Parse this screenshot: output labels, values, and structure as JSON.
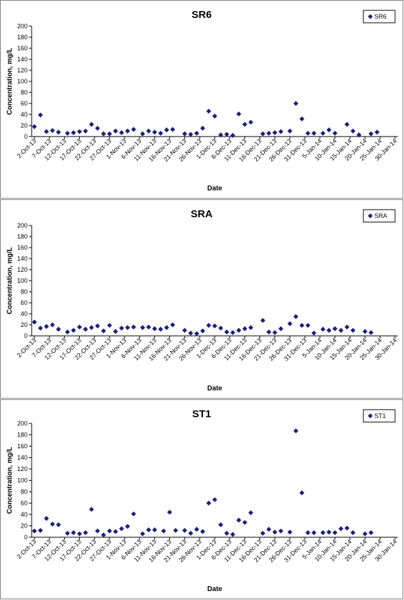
{
  "chart_data": [
    {
      "type": "scatter",
      "title": "SR6",
      "xlabel": "Date",
      "ylabel": "Concentration, mg/L",
      "ylim": [
        0,
        200
      ],
      "yticks": [
        "0",
        "20",
        "40",
        "60",
        "80",
        "100",
        "120",
        "140",
        "160",
        "180",
        "200"
      ],
      "xticks": [
        "2-Oct-13",
        "7-Oct-13",
        "12-Oct-13",
        "17-Oct-13",
        "22-Oct-13",
        "27-Oct-13",
        "1-Nov-13",
        "6-Nov-13",
        "11-Nov-13",
        "16-Nov-13",
        "21-Nov-13",
        "26-Nov-13",
        "1-Dec-13",
        "6-Dec-13",
        "11-Dec-13",
        "16-Dec-13",
        "21-Dec-13",
        "26-Dec-13",
        "31-Dec-13",
        "5-Jan-14",
        "10-Jan-14",
        "15-Jan-14",
        "20-Jan-14",
        "25-Jan-14",
        "30-Jan-14"
      ],
      "legend": {
        "label": "SR6",
        "position": "top-right"
      },
      "grid": false,
      "color": "#1F1F7A",
      "series": [
        {
          "name": "SR6",
          "values": [
            [
              "2-Oct-13",
              18
            ],
            [
              "4-Oct-13",
              39
            ],
            [
              "6-Oct-13",
              9
            ],
            [
              "8-Oct-13",
              11
            ],
            [
              "10-Oct-13",
              8
            ],
            [
              "13-Oct-13",
              6
            ],
            [
              "15-Oct-13",
              7
            ],
            [
              "17-Oct-13",
              9
            ],
            [
              "19-Oct-13",
              10
            ],
            [
              "21-Oct-13",
              22
            ],
            [
              "23-Oct-13",
              15
            ],
            [
              "25-Oct-13",
              5
            ],
            [
              "27-Oct-13",
              5
            ],
            [
              "29-Oct-13",
              10
            ],
            [
              "31-Oct-13",
              7
            ],
            [
              "2-Nov-13",
              10
            ],
            [
              "4-Nov-13",
              13
            ],
            [
              "7-Nov-13",
              5
            ],
            [
              "9-Nov-13",
              10
            ],
            [
              "11-Nov-13",
              8
            ],
            [
              "13-Nov-13",
              6
            ],
            [
              "15-Nov-13",
              12
            ],
            [
              "17-Nov-13",
              13
            ],
            [
              "21-Nov-13",
              5
            ],
            [
              "23-Nov-13",
              4
            ],
            [
              "25-Nov-13",
              6
            ],
            [
              "27-Nov-13",
              15
            ],
            [
              "29-Nov-13",
              46
            ],
            [
              "1-Dec-13",
              37
            ],
            [
              "3-Dec-13",
              3
            ],
            [
              "5-Dec-13",
              4
            ],
            [
              "7-Dec-13",
              2
            ],
            [
              "9-Dec-13",
              41
            ],
            [
              "11-Dec-13",
              22
            ],
            [
              "13-Dec-13",
              26
            ],
            [
              "17-Dec-13",
              5
            ],
            [
              "19-Dec-13",
              6
            ],
            [
              "21-Dec-13",
              7
            ],
            [
              "23-Dec-13",
              9
            ],
            [
              "26-Dec-13",
              10
            ],
            [
              "28-Dec-13",
              60
            ],
            [
              "30-Dec-13",
              32
            ],
            [
              "1-Jan-14",
              6
            ],
            [
              "3-Jan-14",
              6
            ],
            [
              "6-Jan-14",
              6
            ],
            [
              "8-Jan-14",
              12
            ],
            [
              "10-Jan-14",
              6
            ],
            [
              "14-Jan-14",
              22
            ],
            [
              "16-Jan-14",
              10
            ],
            [
              "18-Jan-14",
              3
            ],
            [
              "22-Jan-14",
              5
            ],
            [
              "24-Jan-14",
              8
            ]
          ]
        }
      ]
    },
    {
      "type": "scatter",
      "title": "SRA",
      "xlabel": "Date",
      "ylabel": "Concentration, mg/L",
      "ylim": [
        0,
        200
      ],
      "yticks": [
        "0",
        "20",
        "40",
        "60",
        "80",
        "100",
        "120",
        "140",
        "160",
        "180",
        "200"
      ],
      "xticks": [
        "2-Oct-13",
        "7-Oct-13",
        "12-Oct-13",
        "17-Oct-13",
        "22-Oct-13",
        "27-Oct-13",
        "1-Nov-13",
        "6-Nov-13",
        "11-Nov-13",
        "16-Nov-13",
        "21-Nov-13",
        "26-Nov-13",
        "1-Dec-13",
        "6-Dec-13",
        "11-Dec-13",
        "16-Dec-13",
        "21-Dec-13",
        "26-Dec-13",
        "31-Dec-13",
        "5-Jan-14",
        "10-Jan-14",
        "15-Jan-14",
        "20-Jan-14",
        "25-Jan-14",
        "30-Jan-14"
      ],
      "legend": {
        "label": "SRA",
        "position": "top-right"
      },
      "grid": false,
      "color": "#1F1F7A",
      "series": [
        {
          "name": "SRA",
          "values": [
            [
              "2-Oct-13",
              25
            ],
            [
              "4-Oct-13",
              14
            ],
            [
              "6-Oct-13",
              17
            ],
            [
              "8-Oct-13",
              20
            ],
            [
              "10-Oct-13",
              12
            ],
            [
              "13-Oct-13",
              7
            ],
            [
              "15-Oct-13",
              10
            ],
            [
              "17-Oct-13",
              16
            ],
            [
              "19-Oct-13",
              12
            ],
            [
              "21-Oct-13",
              15
            ],
            [
              "23-Oct-13",
              18
            ],
            [
              "25-Oct-13",
              9
            ],
            [
              "27-Oct-13",
              19
            ],
            [
              "29-Oct-13",
              8
            ],
            [
              "31-Oct-13",
              14
            ],
            [
              "2-Nov-13",
              15
            ],
            [
              "4-Nov-13",
              16
            ],
            [
              "7-Nov-13",
              15
            ],
            [
              "9-Nov-13",
              16
            ],
            [
              "11-Nov-13",
              13
            ],
            [
              "13-Nov-13",
              12
            ],
            [
              "15-Nov-13",
              15
            ],
            [
              "17-Nov-13",
              20
            ],
            [
              "21-Nov-13",
              10
            ],
            [
              "23-Nov-13",
              5
            ],
            [
              "25-Nov-13",
              4
            ],
            [
              "27-Nov-13",
              9
            ],
            [
              "29-Nov-13",
              19
            ],
            [
              "1-Dec-13",
              18
            ],
            [
              "3-Dec-13",
              14
            ],
            [
              "5-Dec-13",
              7
            ],
            [
              "7-Dec-13",
              6
            ],
            [
              "9-Dec-13",
              10
            ],
            [
              "11-Dec-13",
              13
            ],
            [
              "13-Dec-13",
              15
            ],
            [
              "17-Dec-13",
              28
            ],
            [
              "19-Dec-13",
              7
            ],
            [
              "21-Dec-13",
              6
            ],
            [
              "23-Dec-13",
              13
            ],
            [
              "26-Dec-13",
              22
            ],
            [
              "28-Dec-13",
              35
            ],
            [
              "30-Dec-13",
              19
            ],
            [
              "1-Jan-14",
              19
            ],
            [
              "3-Jan-14",
              5
            ],
            [
              "6-Jan-14",
              12
            ],
            [
              "8-Jan-14",
              10
            ],
            [
              "10-Jan-14",
              13
            ],
            [
              "12-Jan-14",
              10
            ],
            [
              "14-Jan-14",
              16
            ],
            [
              "16-Jan-14",
              10
            ],
            [
              "20-Jan-14",
              8
            ],
            [
              "22-Jan-14",
              6
            ]
          ]
        }
      ]
    },
    {
      "type": "scatter",
      "title": "ST1",
      "xlabel": "Date",
      "ylabel": "Concentration, mg/L",
      "ylim": [
        0,
        200
      ],
      "yticks": [
        "0",
        "20",
        "40",
        "60",
        "80",
        "100",
        "120",
        "140",
        "160",
        "180",
        "200"
      ],
      "xticks": [
        "2-Oct-13",
        "7-Oct-13",
        "12-Oct-13",
        "17-Oct-13",
        "22-Oct-13",
        "27-Oct-13",
        "1-Nov-13",
        "6-Nov-13",
        "11-Nov-13",
        "16-Nov-13",
        "21-Nov-13",
        "26-Nov-13",
        "1-Dec-13",
        "6-Dec-13",
        "11-Dec-13",
        "16-Dec-13",
        "21-Dec-13",
        "26-Dec-13",
        "31-Dec-13",
        "5-Jan-14",
        "10-Jan-14",
        "15-Jan-14",
        "20-Jan-14",
        "25-Jan-14",
        "30-Jan-14"
      ],
      "legend": {
        "label": "ST1",
        "position": "top-right"
      },
      "grid": false,
      "color": "#1F1F7A",
      "series": [
        {
          "name": "ST1",
          "values": [
            [
              "2-Oct-13",
              11
            ],
            [
              "4-Oct-13",
              12
            ],
            [
              "6-Oct-13",
              33
            ],
            [
              "8-Oct-13",
              23
            ],
            [
              "10-Oct-13",
              22
            ],
            [
              "13-Oct-13",
              7
            ],
            [
              "15-Oct-13",
              8
            ],
            [
              "17-Oct-13",
              6
            ],
            [
              "19-Oct-13",
              8
            ],
            [
              "21-Oct-13",
              49
            ],
            [
              "23-Oct-13",
              11
            ],
            [
              "25-Oct-13",
              4
            ],
            [
              "27-Oct-13",
              11
            ],
            [
              "29-Oct-13",
              10
            ],
            [
              "31-Oct-13",
              15
            ],
            [
              "2-Nov-13",
              19
            ],
            [
              "4-Nov-13",
              41
            ],
            [
              "7-Nov-13",
              6
            ],
            [
              "9-Nov-13",
              13
            ],
            [
              "11-Nov-13",
              13
            ],
            [
              "14-Nov-13",
              11
            ],
            [
              "16-Nov-13",
              44
            ],
            [
              "18-Nov-13",
              12
            ],
            [
              "21-Nov-13",
              12
            ],
            [
              "23-Nov-13",
              7
            ],
            [
              "25-Nov-13",
              14
            ],
            [
              "27-Nov-13",
              10
            ],
            [
              "29-Nov-13",
              60
            ],
            [
              "1-Dec-13",
              66
            ],
            [
              "3-Dec-13",
              22
            ],
            [
              "5-Dec-13",
              7
            ],
            [
              "7-Dec-13",
              5
            ],
            [
              "9-Dec-13",
              30
            ],
            [
              "11-Dec-13",
              26
            ],
            [
              "13-Dec-13",
              43
            ],
            [
              "17-Dec-13",
              7
            ],
            [
              "19-Dec-13",
              14
            ],
            [
              "21-Dec-13",
              9
            ],
            [
              "23-Dec-13",
              11
            ],
            [
              "26-Dec-13",
              9
            ],
            [
              "28-Dec-13",
              187
            ],
            [
              "30-Dec-13",
              78
            ],
            [
              "1-Jan-14",
              8
            ],
            [
              "3-Jan-14",
              8
            ],
            [
              "6-Jan-14",
              8
            ],
            [
              "8-Jan-14",
              9
            ],
            [
              "10-Jan-14",
              8
            ],
            [
              "12-Jan-14",
              15
            ],
            [
              "14-Jan-14",
              16
            ],
            [
              "16-Jan-14",
              8
            ],
            [
              "20-Jan-14",
              6
            ],
            [
              "22-Jan-14",
              8
            ]
          ]
        }
      ]
    }
  ]
}
